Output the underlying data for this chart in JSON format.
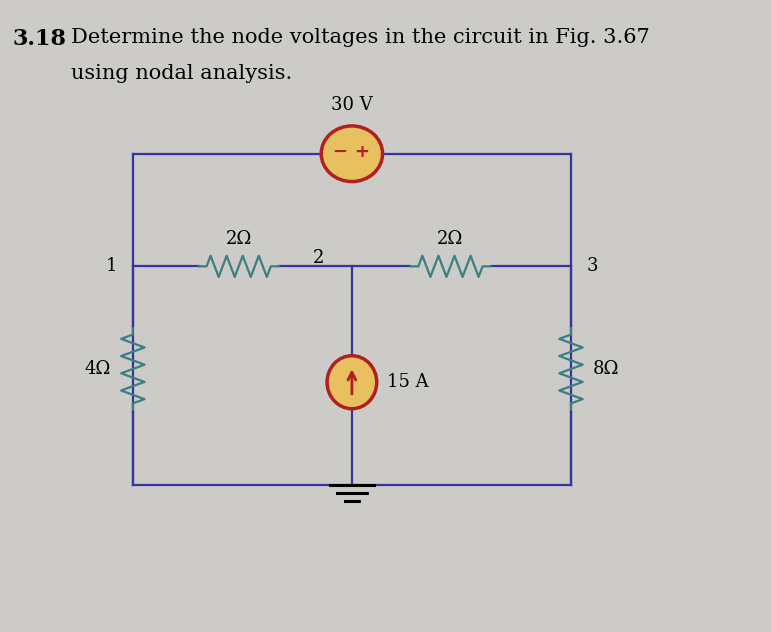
{
  "title_number": "3.18",
  "title_text": "Determine the node voltages in the circuit in Fig. 3.67",
  "title_text2": "using nodal analysis.",
  "bg_color": "#cccbc8",
  "circuit_color": "#3535a0",
  "resistor_color": "#3a8080",
  "voltage_source_fill": "#e8c060",
  "voltage_source_edge": "#b02020",
  "current_source_fill": "#e8c060",
  "current_source_edge": "#b02020",
  "node_labels": [
    "1",
    "2",
    "3"
  ],
  "resistor_labels": [
    "2Ω",
    "2Ω",
    "4Ω",
    "8Ω"
  ],
  "voltage_label": "30 V",
  "current_label": "15 A",
  "title_fontsize": 16,
  "body_fontsize": 15
}
